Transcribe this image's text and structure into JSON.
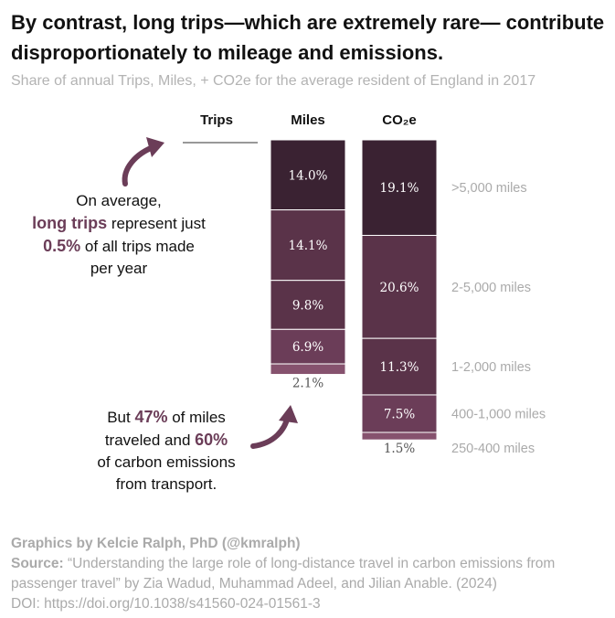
{
  "title": "By contrast, long trips—which are extremely rare— contribute disproportionately to mileage and emissions.",
  "subtitle": "Share of annual Trips, Miles, + CO2e for the average resident of England in 2017",
  "colors": {
    "darkest": "#3a2232",
    "dark": "#5a3349",
    "mid": "#6b3d58",
    "light": "#86526e",
    "accent": "#6b3d58",
    "grey": "#aaaaaa"
  },
  "note_long": {
    "line1": "On average,",
    "highlight": "long trips",
    "line2_rest": " represent just",
    "pct": "0.5%",
    "line3_rest": " of all trips made",
    "line4": "per year"
  },
  "note_emissions": {
    "pre": "But ",
    "pct_miles": "47%",
    "mid1": " of miles",
    "mid2": "traveled and ",
    "pct_co2": "60%",
    "mid3": "of carbon emissions",
    "end": "from transport."
  },
  "credits": {
    "graphics": "Graphics by Kelcie Ralph, PhD (@kmralph)",
    "source_label": "Source:",
    "source_text": " “Understanding the large role of long-distance travel in carbon emissions from passenger travel” by Zia Wadud, Muhammad Adeel, and Jilian Anable. (2024)",
    "doi": "DOI: https://doi.org/10.1038/s41560-024-01561-3"
  },
  "chart_data": {
    "type": "bar",
    "stacked": true,
    "title": "Share of annual Trips, Miles, + CO2e for the average resident of England in 2017",
    "categories": [
      "Trips",
      "Miles",
      "CO₂e"
    ],
    "segments": [
      ">5,000 miles",
      "2-5,000 miles",
      "1-2,000 miles",
      "400-1,000 miles",
      "250-400 miles"
    ],
    "series": [
      {
        "name": ">5,000 miles",
        "values": [
          null,
          14.0,
          19.1
        ],
        "labels": [
          "",
          "14.0%",
          "19.1%"
        ]
      },
      {
        "name": "2-5,000 miles",
        "values": [
          null,
          14.1,
          20.6
        ],
        "labels": [
          "",
          "14.1%",
          "20.6%"
        ]
      },
      {
        "name": "1-2,000 miles",
        "values": [
          null,
          9.8,
          11.3
        ],
        "labels": [
          "",
          "9.8%",
          "11.3%"
        ]
      },
      {
        "name": "400-1,000 miles",
        "values": [
          null,
          6.9,
          7.5
        ],
        "labels": [
          "",
          "6.9%",
          "7.5%"
        ]
      },
      {
        "name": "250-400 miles",
        "values": [
          null,
          2.1,
          1.5
        ],
        "labels": [
          "",
          "2.1%",
          "1.5%"
        ]
      }
    ],
    "trips_total_long": 0.5,
    "ylim": [
      0,
      60
    ]
  }
}
